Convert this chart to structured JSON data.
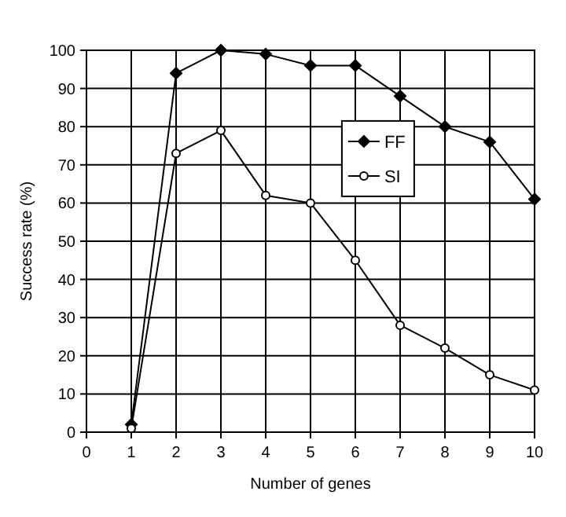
{
  "chart_data": {
    "type": "line",
    "xlabel": "Number of genes",
    "ylabel": "Success rate (%)",
    "x": [
      1,
      2,
      3,
      4,
      5,
      6,
      7,
      8,
      9,
      10
    ],
    "series": [
      {
        "name": "FF",
        "color": "#000000",
        "marker": "diamond",
        "values": [
          2,
          94,
          100,
          99,
          96,
          96,
          88,
          80,
          76,
          61
        ]
      },
      {
        "name": "SI",
        "color": "#000000",
        "marker": "circle",
        "values": [
          1,
          73,
          79,
          62,
          60,
          45,
          28,
          22,
          15,
          11
        ]
      }
    ],
    "xlim": [
      0,
      10
    ],
    "xticks": [
      0,
      1,
      2,
      3,
      4,
      5,
      6,
      7,
      8,
      9,
      10
    ],
    "ylim": [
      0,
      100
    ],
    "yticks": [
      0,
      10,
      20,
      30,
      40,
      50,
      60,
      70,
      80,
      90,
      100
    ],
    "grid": true,
    "legend": "right"
  }
}
